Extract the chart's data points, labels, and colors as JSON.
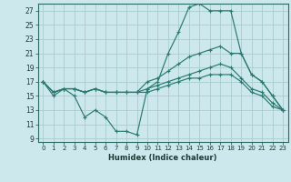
{
  "title": "",
  "xlabel": "Humidex (Indice chaleur)",
  "bg_color": "#cce8ec",
  "grid_color": "#aacccc",
  "line_color": "#2a7a70",
  "xlim": [
    -0.5,
    23.5
  ],
  "ylim": [
    8.5,
    28.0
  ],
  "xticks": [
    0,
    1,
    2,
    3,
    4,
    5,
    6,
    7,
    8,
    9,
    10,
    11,
    12,
    13,
    14,
    15,
    16,
    17,
    18,
    19,
    20,
    21,
    22,
    23
  ],
  "yticks": [
    9,
    11,
    13,
    15,
    17,
    19,
    21,
    23,
    25,
    27
  ],
  "lines": [
    {
      "x": [
        0,
        1,
        2,
        3,
        4,
        5,
        6,
        7,
        8,
        9,
        10,
        11,
        12,
        13,
        14,
        15,
        16,
        17,
        18,
        19,
        20,
        21,
        22,
        23
      ],
      "y": [
        17,
        15,
        16,
        15,
        12,
        13,
        12,
        10,
        10,
        9.5,
        16,
        17,
        21,
        24,
        27.5,
        28,
        27,
        27,
        27,
        21,
        18,
        17,
        15,
        13
      ]
    },
    {
      "x": [
        0,
        1,
        2,
        3,
        4,
        5,
        6,
        7,
        8,
        9,
        10,
        11,
        12,
        13,
        14,
        15,
        16,
        17,
        18,
        19,
        20,
        21,
        22,
        23
      ],
      "y": [
        17,
        15.5,
        16,
        16,
        15.5,
        16,
        15.5,
        15.5,
        15.5,
        15.5,
        17,
        17.5,
        18.5,
        19.5,
        20.5,
        21,
        21.5,
        22,
        21,
        21,
        18,
        17,
        15,
        13
      ]
    },
    {
      "x": [
        0,
        1,
        2,
        3,
        4,
        5,
        6,
        7,
        8,
        9,
        10,
        11,
        12,
        13,
        14,
        15,
        16,
        17,
        18,
        19,
        20,
        21,
        22,
        23
      ],
      "y": [
        17,
        15.5,
        16,
        16,
        15.5,
        16,
        15.5,
        15.5,
        15.5,
        15.5,
        16,
        16.5,
        17,
        17.5,
        18,
        18.5,
        19,
        19.5,
        19,
        17.5,
        16,
        15.5,
        14,
        13
      ]
    },
    {
      "x": [
        0,
        1,
        2,
        3,
        4,
        5,
        6,
        7,
        8,
        9,
        10,
        11,
        12,
        13,
        14,
        15,
        16,
        17,
        18,
        19,
        20,
        21,
        22,
        23
      ],
      "y": [
        17,
        15.5,
        16,
        16,
        15.5,
        16,
        15.5,
        15.5,
        15.5,
        15.5,
        15.5,
        16,
        16.5,
        17,
        17.5,
        17.5,
        18,
        18,
        18,
        17,
        15.5,
        15,
        13.5,
        13
      ]
    }
  ]
}
